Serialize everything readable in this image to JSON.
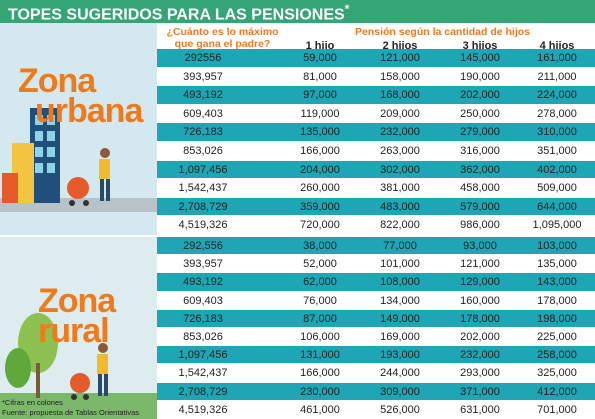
{
  "header": {
    "title": "TOPES SUGERIDOS PARA LAS PENSIONES",
    "title_mark": "*"
  },
  "table": {
    "income_header": "¿Cuánto es lo máximo que gana el padre?",
    "pension_header": "Pensión según la cantidad de hijos",
    "columns": [
      "1 hijo",
      "2 hijos",
      "3 hijos",
      "4 hijos"
    ]
  },
  "zones": [
    {
      "name": [
        "Zona",
        "urbana"
      ],
      "rows": [
        [
          "292556",
          "59,000",
          "121,000",
          "145,000",
          "161,000"
        ],
        [
          "393,957",
          "81,000",
          "158,000",
          "190,000",
          "211,000"
        ],
        [
          "493,192",
          "97,000",
          "168,000",
          "202,000",
          "224,000"
        ],
        [
          "609,403",
          "119,000",
          "209,000",
          "250,000",
          "278,000"
        ],
        [
          "726,183",
          "135,000",
          "232,000",
          "279,000",
          "310,000"
        ],
        [
          "853,026",
          "166,000",
          "263,000",
          "316,000",
          "351,000"
        ],
        [
          "1,097,456",
          "204,000",
          "302,000",
          "362,000",
          "402,000"
        ],
        [
          "1,542,437",
          "260,000",
          "381,000",
          "458,000",
          "509,000"
        ],
        [
          "2,708,729",
          "359,000",
          "483,000",
          "579,000",
          "644,000"
        ],
        [
          "4,519,326",
          "720,000",
          "822,000",
          "986,000",
          "1,095,000"
        ]
      ]
    },
    {
      "name": [
        "Zona",
        "rural"
      ],
      "rows": [
        [
          "292,556",
          "38,000",
          "77,000",
          "93,000",
          "103,000"
        ],
        [
          "393,957",
          "52,000",
          "101,000",
          "121,000",
          "135,000"
        ],
        [
          "493,192",
          "62,000",
          "108,000",
          "129,000",
          "143,000"
        ],
        [
          "609,403",
          "76,000",
          "134,000",
          "160,000",
          "178,000"
        ],
        [
          "726,183",
          "87,000",
          "149,000",
          "178,000",
          "198,000"
        ],
        [
          "853,026",
          "106,000",
          "169,000",
          "202,000",
          "225,000"
        ],
        [
          "1,097,456",
          "131,000",
          "193,000",
          "232,000",
          "258,000"
        ],
        [
          "1,542,437",
          "166,000",
          "244,000",
          "293,000",
          "325,000"
        ],
        [
          "2,708,729",
          "230,000",
          "309,000",
          "371,000",
          "412,000"
        ],
        [
          "4,519,326",
          "461,000",
          "526,000",
          "631,000",
          "701,000"
        ]
      ]
    }
  ],
  "notes": [
    "*Cifras en colones",
    "Fuente: propuesta de Tablas Orientativas"
  ]
}
